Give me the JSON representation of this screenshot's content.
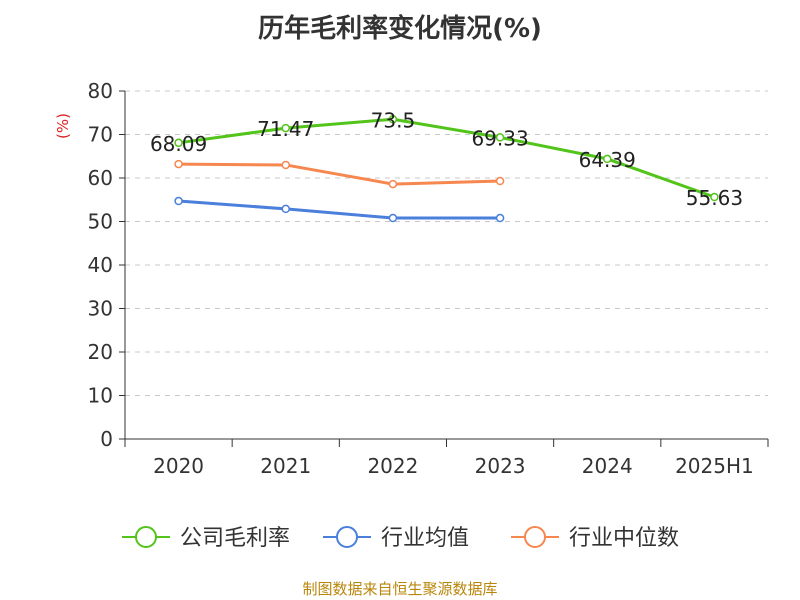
{
  "chart_data": {
    "type": "line",
    "title": "历年毛利率变化情况(%)",
    "ylabel": "(%)",
    "xlabel": "",
    "categories": [
      "2020",
      "2021",
      "2022",
      "2023",
      "2024",
      "2025H1"
    ],
    "y_ticks": [
      "0",
      "10",
      "20",
      "30",
      "40",
      "50",
      "60",
      "70",
      "80"
    ],
    "ylim": [
      0,
      80
    ],
    "grid": true,
    "legend_position": "bottom",
    "series": [
      {
        "name": "公司毛利率",
        "color": "#52c41a",
        "values": [
          68.09,
          71.47,
          73.5,
          69.33,
          64.39,
          55.63
        ],
        "labels": [
          "68.09",
          "71.47",
          "73.5",
          "69.33",
          "64.39",
          "55.63"
        ]
      },
      {
        "name": "行业均值",
        "color": "#4a7fdb",
        "values": [
          54.7,
          52.9,
          50.8,
          50.8,
          null,
          null
        ]
      },
      {
        "name": "行业中位数",
        "color": "#f5874f",
        "values": [
          63.2,
          63.0,
          58.6,
          59.3,
          null,
          null
        ]
      }
    ]
  },
  "source": "制图数据来自恒生聚源数据库"
}
